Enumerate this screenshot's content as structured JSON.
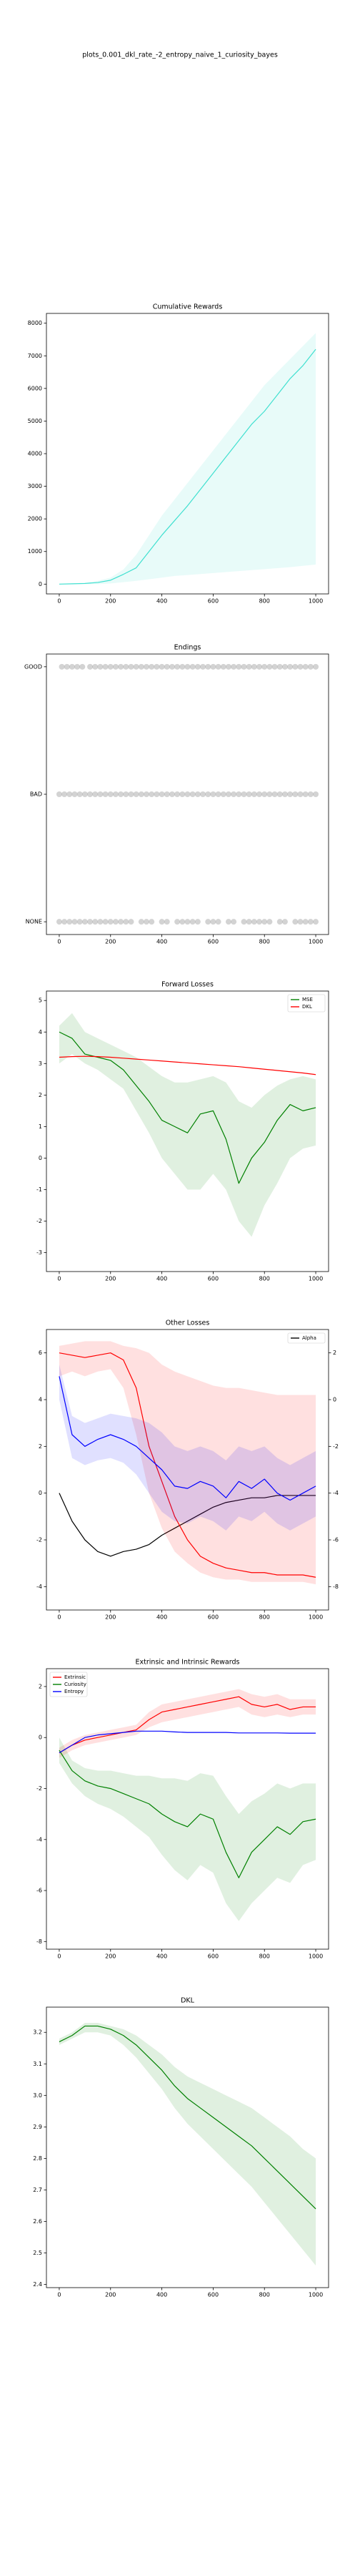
{
  "title": "plots_0.001_dkl_rate_-2_entropy_naive_1_curiosity_bayes",
  "chart_data": [
    {
      "type": "line",
      "title": "Cumulative Rewards",
      "x": [
        0,
        50,
        100,
        150,
        200,
        250,
        300,
        350,
        400,
        450,
        500,
        550,
        600,
        650,
        700,
        750,
        800,
        850,
        900,
        950,
        1000
      ],
      "xlim": [
        -50,
        1050
      ],
      "xticks": [
        0,
        200,
        400,
        600,
        800,
        1000
      ],
      "ylim": [
        -300,
        8300
      ],
      "yticks": [
        0,
        1000,
        2000,
        3000,
        4000,
        5000,
        6000,
        7000,
        8000
      ],
      "series": [
        {
          "color": "#40e0d0",
          "values": [
            0,
            10,
            20,
            50,
            120,
            300,
            500,
            1000,
            1500,
            1950,
            2400,
            2900,
            3400,
            3900,
            4400,
            4900,
            5300,
            5800,
            6300,
            6700,
            7200
          ],
          "lower": [
            0,
            0,
            0,
            0,
            20,
            60,
            100,
            150,
            200,
            250,
            280,
            310,
            340,
            370,
            400,
            430,
            460,
            490,
            520,
            560,
            600
          ],
          "upper": [
            0,
            20,
            50,
            100,
            200,
            450,
            900,
            1500,
            2100,
            2600,
            3100,
            3600,
            4100,
            4600,
            5100,
            5600,
            6100,
            6500,
            6900,
            7300,
            7700
          ]
        }
      ]
    },
    {
      "type": "scatter",
      "title": "Endings",
      "xlim": [
        -50,
        1050
      ],
      "xticks": [
        0,
        200,
        400,
        600,
        800,
        1000
      ],
      "ylim": [
        -0.1,
        2.1
      ],
      "yticks": [
        {
          "value": 0,
          "label": "NONE"
        },
        {
          "value": 1,
          "label": "BAD"
        },
        {
          "value": 2,
          "label": "GOOD"
        }
      ],
      "color": "#808080",
      "series": [
        {
          "x": [
            10,
            30,
            50,
            70,
            90,
            120,
            140,
            160,
            180,
            200,
            220,
            240,
            260,
            280,
            300,
            320,
            340,
            360,
            380,
            400,
            420,
            440,
            460,
            480,
            500,
            520,
            540,
            560,
            580,
            600,
            620,
            640,
            660,
            680,
            700,
            720,
            740,
            760,
            780,
            800,
            820,
            840,
            860,
            880,
            900,
            920,
            940,
            960,
            980,
            1000
          ],
          "values": [
            2,
            2,
            2,
            2,
            2,
            2,
            2,
            2,
            2,
            2,
            2,
            2,
            2,
            2,
            2,
            2,
            2,
            2,
            2,
            2,
            2,
            2,
            2,
            2,
            2,
            2,
            2,
            2,
            2,
            2,
            2,
            2,
            2,
            2,
            2,
            2,
            2,
            2,
            2,
            2,
            2,
            2,
            2,
            2,
            2,
            2,
            2,
            2,
            2,
            2
          ]
        },
        {
          "x": [
            0,
            20,
            40,
            60,
            80,
            100,
            120,
            140,
            160,
            180,
            200,
            220,
            240,
            260,
            280,
            300,
            320,
            340,
            360,
            380,
            400,
            420,
            440,
            460,
            480,
            500,
            520,
            540,
            560,
            580,
            600,
            620,
            640,
            660,
            680,
            700,
            720,
            740,
            760,
            780,
            800,
            820,
            840,
            860,
            880,
            900,
            920,
            940,
            960,
            980,
            1000
          ],
          "values": [
            1,
            1,
            1,
            1,
            1,
            1,
            1,
            1,
            1,
            1,
            1,
            1,
            1,
            1,
            1,
            1,
            1,
            1,
            1,
            1,
            1,
            1,
            1,
            1,
            1,
            1,
            1,
            1,
            1,
            1,
            1,
            1,
            1,
            1,
            1,
            1,
            1,
            1,
            1,
            1,
            1,
            1,
            1,
            1,
            1,
            1,
            1,
            1,
            1,
            1,
            1
          ]
        },
        {
          "x": [
            0,
            20,
            40,
            60,
            80,
            100,
            120,
            140,
            160,
            180,
            200,
            220,
            240,
            260,
            280,
            320,
            340,
            360,
            400,
            420,
            460,
            480,
            500,
            520,
            540,
            580,
            600,
            620,
            660,
            680,
            720,
            740,
            760,
            780,
            800,
            820,
            860,
            880,
            920,
            940,
            960,
            980,
            1000
          ],
          "values": [
            0,
            0,
            0,
            0,
            0,
            0,
            0,
            0,
            0,
            0,
            0,
            0,
            0,
            0,
            0,
            0,
            0,
            0,
            0,
            0,
            0,
            0,
            0,
            0,
            0,
            0,
            0,
            0,
            0,
            0,
            0,
            0,
            0,
            0,
            0,
            0,
            0,
            0,
            0,
            0,
            0,
            0,
            0
          ]
        }
      ]
    },
    {
      "type": "line",
      "title": "Forward Losses",
      "legend": "upper right",
      "x": [
        0,
        50,
        100,
        150,
        200,
        250,
        300,
        350,
        400,
        450,
        500,
        550,
        600,
        650,
        700,
        750,
        800,
        850,
        900,
        950,
        1000
      ],
      "xlim": [
        -50,
        1050
      ],
      "xticks": [
        0,
        200,
        400,
        600,
        800,
        1000
      ],
      "ylim": [
        -3.6,
        5.3
      ],
      "yticks": [
        -3,
        -2,
        -1,
        0,
        1,
        2,
        3,
        4,
        5
      ],
      "series": [
        {
          "name": "MSE",
          "color": "#008000",
          "values": [
            4.0,
            3.8,
            3.3,
            3.2,
            3.1,
            2.8,
            2.3,
            1.8,
            1.2,
            1.0,
            0.8,
            1.4,
            1.5,
            0.6,
            -0.8,
            0.0,
            0.5,
            1.2,
            1.7,
            1.5,
            1.6
          ],
          "lower": [
            3.0,
            3.3,
            3.0,
            2.8,
            2.5,
            2.2,
            1.5,
            0.8,
            0.0,
            -0.5,
            -1.0,
            -1.0,
            -0.5,
            -1.0,
            -2.0,
            -2.5,
            -1.5,
            -0.8,
            0.0,
            0.3,
            0.4
          ],
          "upper": [
            4.2,
            4.6,
            4.0,
            3.8,
            3.6,
            3.4,
            3.2,
            2.9,
            2.6,
            2.4,
            2.4,
            2.5,
            2.6,
            2.4,
            1.8,
            1.6,
            2.0,
            2.3,
            2.5,
            2.6,
            2.5
          ]
        },
        {
          "name": "DKL",
          "color": "#ff0000",
          "values": [
            3.2,
            3.22,
            3.23,
            3.22,
            3.2,
            3.17,
            3.14,
            3.11,
            3.08,
            3.05,
            3.02,
            2.99,
            2.96,
            2.93,
            2.9,
            2.86,
            2.82,
            2.78,
            2.74,
            2.7,
            2.65
          ]
        }
      ]
    },
    {
      "type": "line",
      "title": "Other Losses",
      "legend": "upper right",
      "x": [
        0,
        50,
        100,
        150,
        200,
        250,
        300,
        350,
        400,
        450,
        500,
        550,
        600,
        650,
        700,
        750,
        800,
        850,
        900,
        950,
        1000
      ],
      "xlim": [
        -50,
        1050
      ],
      "xticks": [
        0,
        200,
        400,
        600,
        800,
        1000
      ],
      "ylim": [
        -5,
        7
      ],
      "yticks": [
        -4,
        -2,
        0,
        2,
        4,
        6
      ],
      "y2lim": [
        -9,
        3
      ],
      "y2ticks": [
        -8,
        -6,
        -4,
        -2,
        0,
        2
      ],
      "series": [
        {
          "name": "Alpha",
          "color": "#000000",
          "axis": "y2",
          "values": [
            -4,
            -5.2,
            -6,
            -6.5,
            -6.7,
            -6.5,
            -6.4,
            -6.2,
            -5.8,
            -5.5,
            -5.2,
            -4.9,
            -4.6,
            -4.4,
            -4.3,
            -4.2,
            -4.2,
            -4.1,
            -4.1,
            -4.1,
            -4.1
          ]
        },
        {
          "color": "#ff0000",
          "values": [
            6.0,
            5.9,
            5.8,
            5.9,
            6.0,
            5.7,
            4.5,
            2.0,
            0.5,
            -1.0,
            -2.0,
            -2.7,
            -3.0,
            -3.2,
            -3.3,
            -3.4,
            -3.4,
            -3.5,
            -3.5,
            -3.5,
            -3.6
          ],
          "lower": [
            5.0,
            5.2,
            5.0,
            5.2,
            5.3,
            4.5,
            2.5,
            0.0,
            -1.5,
            -2.5,
            -3.0,
            -3.4,
            -3.6,
            -3.7,
            -3.7,
            -3.8,
            -3.8,
            -3.8,
            -3.8,
            -3.8,
            -3.9
          ],
          "upper": [
            6.3,
            6.4,
            6.5,
            6.5,
            6.5,
            6.3,
            6.2,
            6.0,
            5.5,
            5.2,
            5.0,
            4.8,
            4.6,
            4.5,
            4.5,
            4.4,
            4.3,
            4.2,
            4.2,
            4.2,
            4.2
          ]
        },
        {
          "color": "#0000ff",
          "values": [
            5.0,
            2.5,
            2.0,
            2.3,
            2.5,
            2.3,
            2.0,
            1.5,
            1.0,
            0.3,
            0.2,
            0.5,
            0.3,
            -0.2,
            0.5,
            0.2,
            0.6,
            0.0,
            -0.3,
            0.0,
            0.3
          ],
          "lower": [
            4.0,
            1.5,
            1.2,
            1.4,
            1.5,
            1.3,
            0.8,
            0.0,
            -0.8,
            -1.2,
            -1.3,
            -1.0,
            -1.2,
            -1.6,
            -1.0,
            -1.2,
            -0.8,
            -1.3,
            -1.6,
            -1.3,
            -1.0
          ],
          "upper": [
            5.5,
            3.3,
            3.0,
            3.2,
            3.4,
            3.3,
            3.2,
            3.0,
            2.6,
            2.0,
            1.8,
            2.0,
            1.8,
            1.4,
            2.0,
            1.8,
            2.0,
            1.5,
            1.2,
            1.5,
            1.8
          ]
        }
      ]
    },
    {
      "type": "line",
      "title": "Extrinsic and Intrinsic Rewards",
      "legend": "upper left",
      "x": [
        0,
        50,
        100,
        150,
        200,
        250,
        300,
        350,
        400,
        450,
        500,
        550,
        600,
        650,
        700,
        750,
        800,
        850,
        900,
        950,
        1000
      ],
      "xlim": [
        -50,
        1050
      ],
      "xticks": [
        0,
        200,
        400,
        600,
        800,
        1000
      ],
      "ylim": [
        -8.3,
        2.7
      ],
      "yticks": [
        -8,
        -6,
        -4,
        -2,
        0,
        2
      ],
      "series": [
        {
          "name": "Extrinsic",
          "color": "#ff0000",
          "values": [
            -0.6,
            -0.3,
            -0.1,
            0.0,
            0.1,
            0.2,
            0.3,
            0.7,
            1.0,
            1.1,
            1.2,
            1.3,
            1.4,
            1.5,
            1.6,
            1.3,
            1.2,
            1.3,
            1.1,
            1.2,
            1.2
          ],
          "lower": [
            -0.8,
            -0.5,
            -0.3,
            -0.2,
            -0.1,
            0.0,
            0.1,
            0.4,
            0.6,
            0.7,
            0.8,
            0.9,
            1.0,
            1.1,
            1.2,
            0.9,
            0.8,
            0.9,
            0.8,
            0.9,
            0.9
          ],
          "upper": [
            -0.4,
            -0.1,
            0.1,
            0.2,
            0.3,
            0.4,
            0.5,
            1.0,
            1.3,
            1.4,
            1.5,
            1.6,
            1.7,
            1.8,
            1.9,
            1.7,
            1.6,
            1.7,
            1.5,
            1.5,
            1.5
          ]
        },
        {
          "name": "Curiosity",
          "color": "#008000",
          "values": [
            -0.5,
            -1.3,
            -1.7,
            -1.9,
            -2.0,
            -2.2,
            -2.4,
            -2.6,
            -3.0,
            -3.3,
            -3.5,
            -3.0,
            -3.2,
            -4.5,
            -5.5,
            -4.5,
            -4.0,
            -3.5,
            -3.8,
            -3.3,
            -3.2
          ],
          "lower": [
            -1.0,
            -1.8,
            -2.3,
            -2.6,
            -2.8,
            -3.1,
            -3.5,
            -3.9,
            -4.6,
            -5.2,
            -5.6,
            -5.0,
            -5.3,
            -6.5,
            -7.2,
            -6.5,
            -6.0,
            -5.5,
            -5.7,
            -5.0,
            -4.8
          ],
          "upper": [
            0.0,
            -0.9,
            -1.2,
            -1.3,
            -1.3,
            -1.4,
            -1.5,
            -1.5,
            -1.6,
            -1.6,
            -1.7,
            -1.4,
            -1.5,
            -2.3,
            -3.0,
            -2.5,
            -2.2,
            -1.8,
            -2.0,
            -1.8,
            -1.8
          ]
        },
        {
          "name": "Entropy",
          "color": "#0000ff",
          "values": [
            -0.6,
            -0.3,
            0.0,
            0.1,
            0.15,
            0.2,
            0.25,
            0.25,
            0.25,
            0.22,
            0.2,
            0.2,
            0.2,
            0.2,
            0.18,
            0.18,
            0.18,
            0.18,
            0.17,
            0.17,
            0.17
          ]
        }
      ]
    },
    {
      "type": "line",
      "title": "DKL",
      "x": [
        0,
        50,
        100,
        150,
        200,
        250,
        300,
        350,
        400,
        450,
        500,
        550,
        600,
        650,
        700,
        750,
        800,
        850,
        900,
        950,
        1000
      ],
      "xlim": [
        -50,
        1050
      ],
      "xticks": [
        0,
        200,
        400,
        600,
        800,
        1000
      ],
      "ylim": [
        2.39,
        3.28
      ],
      "yticks": [
        2.4,
        2.5,
        2.6,
        2.7,
        2.8,
        2.9,
        {
          "value": 3,
          "label": "3.0"
        },
        3.1,
        3.2
      ],
      "series": [
        {
          "color": "#008000",
          "values": [
            3.17,
            3.19,
            3.22,
            3.22,
            3.21,
            3.19,
            3.16,
            3.12,
            3.08,
            3.03,
            2.99,
            2.96,
            2.93,
            2.9,
            2.87,
            2.84,
            2.8,
            2.76,
            2.72,
            2.68,
            2.64
          ],
          "lower": [
            3.16,
            3.18,
            3.2,
            3.2,
            3.19,
            3.16,
            3.12,
            3.07,
            3.02,
            2.96,
            2.91,
            2.87,
            2.83,
            2.79,
            2.75,
            2.71,
            2.66,
            2.61,
            2.56,
            2.51,
            2.46
          ],
          "upper": [
            3.18,
            3.2,
            3.23,
            3.23,
            3.22,
            3.21,
            3.19,
            3.16,
            3.13,
            3.09,
            3.06,
            3.04,
            3.02,
            3.0,
            2.98,
            2.96,
            2.93,
            2.9,
            2.87,
            2.83,
            2.8
          ]
        }
      ]
    }
  ]
}
